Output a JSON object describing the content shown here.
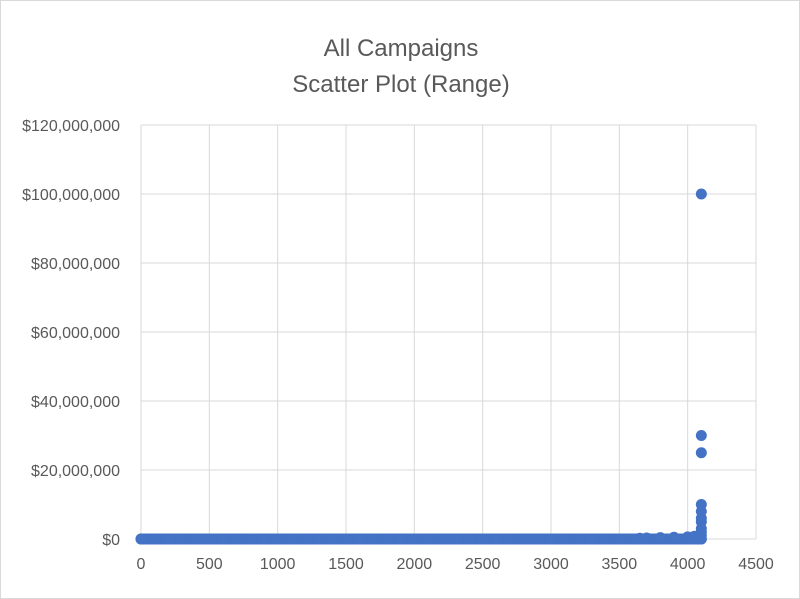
{
  "chart_data": {
    "type": "scatter",
    "title": "All Campaigns",
    "subtitle": "Scatter Plot (Range)",
    "xlabel": "",
    "ylabel": "",
    "xlim": [
      0,
      4500
    ],
    "ylim": [
      0,
      120000000
    ],
    "x_ticks": [
      0,
      500,
      1000,
      1500,
      2000,
      2500,
      3000,
      3500,
      4000,
      4500
    ],
    "x_tick_labels": [
      "0",
      "500",
      "1000",
      "1500",
      "2000",
      "2500",
      "3000",
      "3500",
      "4000",
      "4500"
    ],
    "y_ticks": [
      0,
      20000000,
      40000000,
      60000000,
      80000000,
      100000000,
      120000000
    ],
    "y_tick_labels": [
      "$0",
      "$20,000,000",
      "$40,000,000",
      "$60,000,000",
      "$80,000,000",
      "$100,000,000",
      "$120,000,000"
    ],
    "grid": true,
    "legend": "none",
    "marker_color": "#4472c4",
    "points": [
      {
        "x": 0,
        "y": 0
      },
      {
        "x": 100,
        "y": 0
      },
      {
        "x": 200,
        "y": 0
      },
      {
        "x": 300,
        "y": 0
      },
      {
        "x": 400,
        "y": 0
      },
      {
        "x": 500,
        "y": 0
      },
      {
        "x": 600,
        "y": 0
      },
      {
        "x": 700,
        "y": 0
      },
      {
        "x": 800,
        "y": 0
      },
      {
        "x": 900,
        "y": 0
      },
      {
        "x": 1000,
        "y": 0
      },
      {
        "x": 1100,
        "y": 0
      },
      {
        "x": 1200,
        "y": 0
      },
      {
        "x": 1300,
        "y": 0
      },
      {
        "x": 1400,
        "y": 0
      },
      {
        "x": 1500,
        "y": 0
      },
      {
        "x": 1600,
        "y": 0
      },
      {
        "x": 1700,
        "y": 0
      },
      {
        "x": 1800,
        "y": 0
      },
      {
        "x": 1900,
        "y": 0
      },
      {
        "x": 2000,
        "y": 0
      },
      {
        "x": 2100,
        "y": 0
      },
      {
        "x": 2200,
        "y": 0
      },
      {
        "x": 2300,
        "y": 0
      },
      {
        "x": 2400,
        "y": 0
      },
      {
        "x": 2500,
        "y": 0
      },
      {
        "x": 2600,
        "y": 0
      },
      {
        "x": 2700,
        "y": 0
      },
      {
        "x": 2800,
        "y": 0
      },
      {
        "x": 2900,
        "y": 0
      },
      {
        "x": 3000,
        "y": 0
      },
      {
        "x": 3100,
        "y": 0
      },
      {
        "x": 3200,
        "y": 0
      },
      {
        "x": 3300,
        "y": 0
      },
      {
        "x": 3400,
        "y": 0
      },
      {
        "x": 3500,
        "y": 0
      },
      {
        "x": 3600,
        "y": 0
      },
      {
        "x": 3650,
        "y": 200000
      },
      {
        "x": 3700,
        "y": 300000
      },
      {
        "x": 3800,
        "y": 400000
      },
      {
        "x": 3900,
        "y": 500000
      },
      {
        "x": 4000,
        "y": 600000
      },
      {
        "x": 4050,
        "y": 800000
      },
      {
        "x": 4100,
        "y": 0
      },
      {
        "x": 4100,
        "y": 1000000
      },
      {
        "x": 4100,
        "y": 2000000
      },
      {
        "x": 4100,
        "y": 3000000
      },
      {
        "x": 4100,
        "y": 5000000
      },
      {
        "x": 4100,
        "y": 6000000
      },
      {
        "x": 4100,
        "y": 8000000
      },
      {
        "x": 4100,
        "y": 10000000
      },
      {
        "x": 4100,
        "y": 25000000
      },
      {
        "x": 4100,
        "y": 30000000
      },
      {
        "x": 4100,
        "y": 100000000
      }
    ]
  }
}
